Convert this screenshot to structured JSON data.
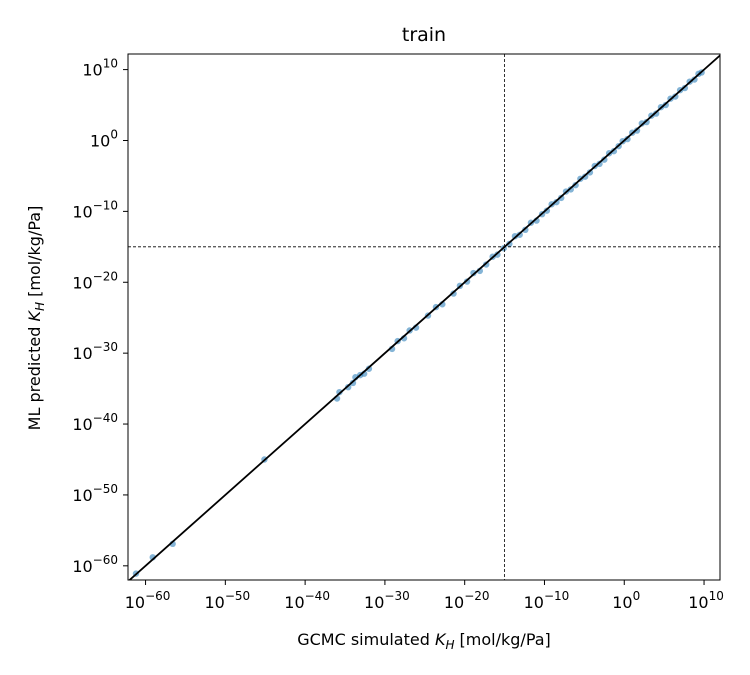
{
  "chart_data": {
    "type": "scatter",
    "title": "train",
    "xlabel": {
      "prefix": "GCMC simulated ",
      "sym": "K",
      "sub": "H",
      "suffix": " [mol/kg/Pa]"
    },
    "ylabel": {
      "prefix": "ML predicted ",
      "sym": "K",
      "sub": "H",
      "suffix": " [mol/kg/Pa]"
    },
    "log_scale": true,
    "xlim_exp": [
      -62.2,
      12.0
    ],
    "ylim_exp": [
      -62.0,
      12.2
    ],
    "x_ticks": [
      {
        "base": "10",
        "exp": "−60"
      },
      {
        "base": "10",
        "exp": "−50"
      },
      {
        "base": "10",
        "exp": "−40"
      },
      {
        "base": "10",
        "exp": "−30"
      },
      {
        "base": "10",
        "exp": "−20"
      },
      {
        "base": "10",
        "exp": "−10"
      },
      {
        "base": "10",
        "exp": "0"
      },
      {
        "base": "10",
        "exp": "10"
      }
    ],
    "y_ticks": [
      {
        "base": "10",
        "exp": "−60"
      },
      {
        "base": "10",
        "exp": "−50"
      },
      {
        "base": "10",
        "exp": "−40"
      },
      {
        "base": "10",
        "exp": "−30"
      },
      {
        "base": "10",
        "exp": "−20"
      },
      {
        "base": "10",
        "exp": "−10"
      },
      {
        "base": "10",
        "exp": "0"
      },
      {
        "base": "10",
        "exp": "10"
      }
    ],
    "reference_lines": {
      "vertical_exp": -15,
      "horizontal_exp": -15
    },
    "diagonal": true,
    "grid": false,
    "point_color": "#1f77b4",
    "line_color": "#000000",
    "points_exp": [
      [
        -61.2,
        -61.1
      ],
      [
        -59.1,
        -58.8
      ],
      [
        -56.6,
        -56.9
      ],
      [
        -45.1,
        -45.0
      ],
      [
        -36.0,
        -36.4
      ],
      [
        -35.7,
        -35.5
      ],
      [
        -34.6,
        -34.8
      ],
      [
        -34.0,
        -34.2
      ],
      [
        -33.7,
        -33.4
      ],
      [
        -33.1,
        -33.1
      ],
      [
        -32.6,
        -32.9
      ],
      [
        -32.0,
        -32.2
      ],
      [
        -29.1,
        -29.4
      ],
      [
        -28.4,
        -28.3
      ],
      [
        -27.6,
        -27.9
      ],
      [
        -26.9,
        -26.8
      ],
      [
        -26.1,
        -26.4
      ],
      [
        -24.6,
        -24.7
      ],
      [
        -23.6,
        -23.5
      ],
      [
        -22.8,
        -23.1
      ],
      [
        -21.4,
        -21.6
      ],
      [
        -20.6,
        -20.5
      ],
      [
        -19.7,
        -19.9
      ],
      [
        -18.9,
        -18.7
      ],
      [
        -18.1,
        -18.4
      ],
      [
        -17.3,
        -17.5
      ],
      [
        -16.5,
        -16.4
      ],
      [
        -15.9,
        -16.1
      ],
      [
        -15.1,
        -15.2
      ],
      [
        -14.4,
        -14.6
      ],
      [
        -13.7,
        -13.5
      ],
      [
        -13.1,
        -13.3
      ],
      [
        -12.4,
        -12.6
      ],
      [
        -11.7,
        -11.6
      ],
      [
        -11.0,
        -11.3
      ],
      [
        -10.3,
        -10.4
      ],
      [
        -9.7,
        -9.9
      ],
      [
        -9.1,
        -9.0
      ],
      [
        -8.5,
        -8.7
      ],
      [
        -7.9,
        -8.1
      ],
      [
        -7.3,
        -7.2
      ],
      [
        -6.7,
        -6.9
      ],
      [
        -6.1,
        -6.3
      ],
      [
        -5.5,
        -5.4
      ],
      [
        -4.9,
        -5.1
      ],
      [
        -4.3,
        -4.5
      ],
      [
        -3.7,
        -3.6
      ],
      [
        -3.1,
        -3.3
      ],
      [
        -2.5,
        -2.7
      ],
      [
        -1.9,
        -1.8
      ],
      [
        -1.3,
        -1.5
      ],
      [
        -0.7,
        -0.8
      ],
      [
        -0.2,
        -0.1
      ],
      [
        0.4,
        0.2
      ],
      [
        1.0,
        1.1
      ],
      [
        1.6,
        1.4
      ],
      [
        2.2,
        2.4
      ],
      [
        2.8,
        2.6
      ],
      [
        3.4,
        3.5
      ],
      [
        4.0,
        3.8
      ],
      [
        4.6,
        4.7
      ],
      [
        5.2,
        5.0
      ],
      [
        5.8,
        5.9
      ],
      [
        6.4,
        6.2
      ],
      [
        7.0,
        7.1
      ],
      [
        7.6,
        7.4
      ],
      [
        8.2,
        8.3
      ],
      [
        8.8,
        8.6
      ],
      [
        9.3,
        9.4
      ],
      [
        9.7,
        9.6
      ]
    ]
  }
}
